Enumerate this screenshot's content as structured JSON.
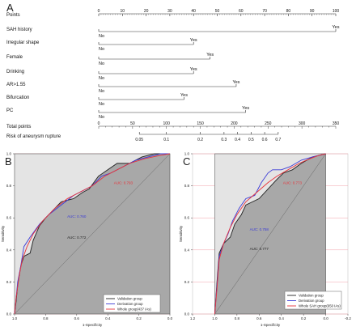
{
  "panel_labels": {
    "a": "A",
    "b": "B",
    "c": "C"
  },
  "chart_data": [
    {
      "type": "nomogram",
      "points_label": "Points",
      "points_ticks": [
        "0",
        "10",
        "20",
        "30",
        "40",
        "50",
        "60",
        "70",
        "80",
        "90",
        "100"
      ],
      "predictors": [
        {
          "name": "SAH history",
          "no": "No",
          "yes": "Yes",
          "points": 100
        },
        {
          "name": "Irregular shape",
          "no": "No",
          "yes": "Yes",
          "points": 40
        },
        {
          "name": "Female",
          "no": "No",
          "yes": "Yes",
          "points": 47
        },
        {
          "name": "Drinking",
          "no": "No",
          "yes": "Yes",
          "points": 40
        },
        {
          "name": "AR>1.55",
          "no": "No",
          "yes": "Yes",
          "points": 58
        },
        {
          "name": "Bifurcation",
          "no": "No",
          "yes": "Yes",
          "points": 36
        },
        {
          "name": "PC",
          "no": "No",
          "yes": "Yes",
          "points": 62
        }
      ],
      "total_label": "Total points",
      "total_ticks": [
        "0",
        "50",
        "100",
        "150",
        "200",
        "250",
        "300",
        "350"
      ],
      "total_range": [
        0,
        350
      ],
      "risk_label": "Risk of aneurysm rupture",
      "risk_ticks": [
        {
          "label": "0.05",
          "total": 60
        },
        {
          "label": "0.1",
          "total": 100
        },
        {
          "label": "0.2",
          "total": 150
        },
        {
          "label": "0.3",
          "total": 185
        },
        {
          "label": "0.4",
          "total": 205
        },
        {
          "label": "0.5",
          "total": 225
        },
        {
          "label": "0.6",
          "total": 245
        },
        {
          "label": "0.7",
          "total": 265
        }
      ]
    },
    {
      "type": "line",
      "panel": "B",
      "xlabel": "1-Specificity",
      "ylabel": "Sensitivity",
      "x_ticks": [
        "1.0",
        "0.8",
        "0.6",
        "0.4",
        "0.2",
        "0.0"
      ],
      "y_ticks": [
        "0.0",
        "0.2",
        "0.4",
        "0.6",
        "0.8",
        "1.0"
      ],
      "x_reversed": true,
      "auc_labels": [
        {
          "text": "AUC: 0.793",
          "color": "#e8333a",
          "spec": 0.3,
          "sens": 0.81
        },
        {
          "text": "AUC: 0.760",
          "color": "#3b3bd6",
          "spec": 0.6,
          "sens": 0.6
        },
        {
          "text": "AUC: 0.772",
          "color": "#222222",
          "spec": 0.6,
          "sens": 0.47
        }
      ],
      "series": [
        {
          "name": "Validation group",
          "color": "#222222",
          "points": [
            [
              1,
              0
            ],
            [
              0.99,
              0.08
            ],
            [
              0.98,
              0.18
            ],
            [
              0.96,
              0.3
            ],
            [
              0.94,
              0.36
            ],
            [
              0.9,
              0.38
            ],
            [
              0.88,
              0.46
            ],
            [
              0.84,
              0.55
            ],
            [
              0.8,
              0.6
            ],
            [
              0.74,
              0.66
            ],
            [
              0.7,
              0.7
            ],
            [
              0.62,
              0.72
            ],
            [
              0.56,
              0.76
            ],
            [
              0.52,
              0.78
            ],
            [
              0.46,
              0.86
            ],
            [
              0.4,
              0.9
            ],
            [
              0.34,
              0.94
            ],
            [
              0.26,
              0.94
            ],
            [
              0.18,
              0.98
            ],
            [
              0.1,
              1
            ],
            [
              0,
              1
            ]
          ]
        },
        {
          "name": "Derivation group",
          "color": "#3b3bd6",
          "points": [
            [
              1,
              0
            ],
            [
              0.98,
              0.2
            ],
            [
              0.96,
              0.3
            ],
            [
              0.94,
              0.42
            ],
            [
              0.9,
              0.48
            ],
            [
              0.84,
              0.56
            ],
            [
              0.78,
              0.62
            ],
            [
              0.7,
              0.68
            ],
            [
              0.62,
              0.74
            ],
            [
              0.56,
              0.77
            ],
            [
              0.5,
              0.8
            ],
            [
              0.44,
              0.86
            ],
            [
              0.38,
              0.88
            ],
            [
              0.3,
              0.92
            ],
            [
              0.22,
              0.96
            ],
            [
              0.14,
              0.98
            ],
            [
              0.06,
              1
            ],
            [
              0,
              1
            ]
          ]
        },
        {
          "name": "Whole group(437 IAs)",
          "color": "#e8333a",
          "points": [
            [
              1,
              0
            ],
            [
              0.99,
              0.1
            ],
            [
              0.97,
              0.24
            ],
            [
              0.95,
              0.34
            ],
            [
              0.92,
              0.42
            ],
            [
              0.88,
              0.5
            ],
            [
              0.82,
              0.58
            ],
            [
              0.74,
              0.66
            ],
            [
              0.66,
              0.72
            ],
            [
              0.58,
              0.76
            ],
            [
              0.5,
              0.8
            ],
            [
              0.42,
              0.86
            ],
            [
              0.34,
              0.9
            ],
            [
              0.26,
              0.94
            ],
            [
              0.16,
              0.97
            ],
            [
              0.06,
              0.99
            ],
            [
              0,
              1
            ]
          ]
        }
      ]
    },
    {
      "type": "line",
      "panel": "C",
      "xlabel": "1-Specificity",
      "ylabel": "Sensitivity",
      "x_ticks": [
        "1.2",
        "1.0",
        "0.8",
        "0.6",
        "0.4",
        "0.2",
        "0.0",
        "-0.2"
      ],
      "y_ticks": [
        "0.0",
        "0.2",
        "0.4",
        "0.6",
        "0.8",
        "1.0"
      ],
      "x_reversed": true,
      "auc_labels": [
        {
          "text": "AUC: 0.773",
          "color": "#e8333a",
          "spec": 0.3,
          "sens": 0.81
        },
        {
          "text": "AUC: 0.758",
          "color": "#3b3bd6",
          "spec": 0.6,
          "sens": 0.52
        },
        {
          "text": "AUC: 0.777",
          "color": "#222222",
          "spec": 0.6,
          "sens": 0.4
        }
      ],
      "series": [
        {
          "name": "Validation group",
          "color": "#222222",
          "points": [
            [
              1,
              0
            ],
            [
              0.98,
              0.2
            ],
            [
              0.96,
              0.38
            ],
            [
              0.92,
              0.44
            ],
            [
              0.86,
              0.48
            ],
            [
              0.82,
              0.56
            ],
            [
              0.76,
              0.62
            ],
            [
              0.72,
              0.68
            ],
            [
              0.66,
              0.7
            ],
            [
              0.6,
              0.72
            ],
            [
              0.52,
              0.78
            ],
            [
              0.44,
              0.84
            ],
            [
              0.38,
              0.88
            ],
            [
              0.3,
              0.9
            ],
            [
              0.22,
              0.94
            ],
            [
              0.12,
              0.98
            ],
            [
              0,
              1
            ]
          ]
        },
        {
          "name": "Derivation group",
          "color": "#3b3bd6",
          "points": [
            [
              1,
              0
            ],
            [
              0.98,
              0.18
            ],
            [
              0.96,
              0.36
            ],
            [
              0.92,
              0.44
            ],
            [
              0.88,
              0.5
            ],
            [
              0.84,
              0.58
            ],
            [
              0.78,
              0.66
            ],
            [
              0.72,
              0.72
            ],
            [
              0.64,
              0.74
            ],
            [
              0.58,
              0.82
            ],
            [
              0.52,
              0.88
            ],
            [
              0.48,
              0.9
            ],
            [
              0.4,
              0.9
            ],
            [
              0.32,
              0.92
            ],
            [
              0.22,
              0.96
            ],
            [
              0.12,
              0.98
            ],
            [
              0,
              1
            ]
          ]
        },
        {
          "name": "Whole SAH group(650 IAs)",
          "color": "#e8333a",
          "points": [
            [
              1,
              0
            ],
            [
              0.98,
              0.16
            ],
            [
              0.96,
              0.34
            ],
            [
              0.92,
              0.44
            ],
            [
              0.86,
              0.54
            ],
            [
              0.8,
              0.62
            ],
            [
              0.72,
              0.7
            ],
            [
              0.62,
              0.76
            ],
            [
              0.52,
              0.82
            ],
            [
              0.44,
              0.86
            ],
            [
              0.34,
              0.9
            ],
            [
              0.24,
              0.94
            ],
            [
              0.14,
              0.97
            ],
            [
              0.06,
              0.99
            ],
            [
              0,
              1
            ]
          ]
        }
      ]
    }
  ]
}
